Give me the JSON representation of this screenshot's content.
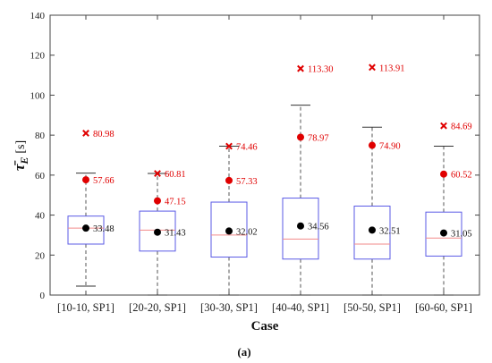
{
  "chart_data": {
    "type": "box",
    "categories": [
      "[10-10, SP1]",
      "[20-20, SP1]",
      "[30-30, SP1]",
      "[40-40, SP1]",
      "[50-50, SP1]",
      "[60-60, SP1]"
    ],
    "boxes": [
      {
        "whisker_low": 4.5,
        "q1": 25.5,
        "median": 33.5,
        "q3": 39.5,
        "whisker_high": 61,
        "outliers": [
          80.98
        ],
        "red_dot": 57.66,
        "mean": 33.48
      },
      {
        "whisker_low": 0,
        "q1": 22,
        "median": 32.5,
        "q3": 42,
        "whisker_high": 60.81,
        "outliers": [
          60.81
        ],
        "red_dot": 47.15,
        "mean": 31.43
      },
      {
        "whisker_low": 0,
        "q1": 19,
        "median": 30,
        "q3": 46.5,
        "whisker_high": 74.46,
        "outliers": [
          74.46
        ],
        "red_dot": 57.33,
        "mean": 32.02
      },
      {
        "whisker_low": 0,
        "q1": 18,
        "median": 28,
        "q3": 48.5,
        "whisker_high": 95,
        "outliers": [
          113.3
        ],
        "red_dot": 78.97,
        "mean": 34.56
      },
      {
        "whisker_low": 0,
        "q1": 18,
        "median": 25.5,
        "q3": 44.5,
        "whisker_high": 84,
        "outliers": [
          113.91
        ],
        "red_dot": 74.9,
        "mean": 32.51
      },
      {
        "whisker_low": 0,
        "q1": 19.5,
        "median": 28.5,
        "q3": 41.5,
        "whisker_high": 74.5,
        "outliers": [
          84.69
        ],
        "red_dot": 60.52,
        "mean": 31.05
      }
    ],
    "red_labels": [
      "80.98",
      "60.81",
      "74.46",
      "113.30",
      "113.91",
      "84.69"
    ],
    "dot_labels": [
      "57.66",
      "47.15",
      "57.33",
      "78.97",
      "74.90",
      "60.52"
    ],
    "mean_labels": [
      "33.48",
      "31.43",
      "32.02",
      "34.56",
      "32.51",
      "31.05"
    ],
    "xlabel": "Case",
    "ylabel_symbol": "τ̄",
    "ylabel_sub": "E",
    "ylabel_unit": "[s]",
    "ylim": [
      0,
      140
    ],
    "yticks": [
      0,
      20,
      40,
      60,
      80,
      100,
      120,
      140
    ],
    "grid": false,
    "caption": "(a)",
    "colors": {
      "box": "#5a5ae6",
      "median": "#f28a8a",
      "outlier": "#e00000",
      "mean": "#000000",
      "whisker": "#555555"
    }
  }
}
